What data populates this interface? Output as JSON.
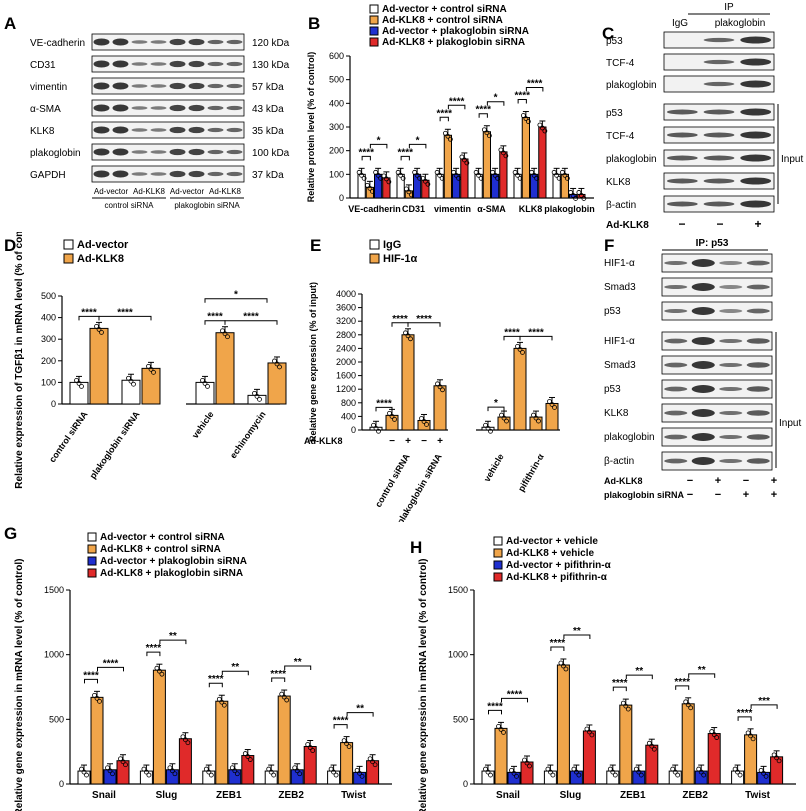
{
  "colors": {
    "white": "#ffffff",
    "orange": "#f0a54a",
    "blue": "#1f2fd0",
    "red": "#e02a2a",
    "band": "#222222"
  },
  "panels": {
    "A": {
      "label": "A",
      "rows": [
        "VE-cadherin",
        "CD31",
        "vimentin",
        "α-SMA",
        "KLK8",
        "plakoglobin",
        "GAPDH"
      ],
      "sizes": [
        "120 kDa",
        "130 kDa",
        "57 kDa",
        "43 kDa",
        "35 kDa",
        "100 kDa",
        "37 kDa"
      ],
      "lanes": [
        "Ad-vector",
        "Ad-KLK8",
        "Ad-vector",
        "Ad-KLK8"
      ],
      "groups": [
        "control siRNA",
        "plakoglobin siRNA"
      ]
    },
    "B": {
      "label": "B",
      "legend": [
        "Ad-vector + control siRNA",
        "Ad-KLK8 + control siRNA",
        "Ad-vector + plakoglobin siRNA",
        "Ad-KLK8 + plakoglobin siRNA"
      ],
      "ylabel": "Relative protein level (% of control)",
      "yticks": [
        "0",
        "100",
        "200",
        "300",
        "400",
        "500",
        "600"
      ],
      "categories": [
        "VE-cadherin",
        "CD31",
        "vimentin",
        "α-SMA",
        "KLK8",
        "plakoglobin"
      ],
      "sig": [
        "****",
        "*",
        "****",
        "*",
        "****",
        "****",
        "****",
        "*",
        "****",
        "****"
      ]
    },
    "C": {
      "label": "C",
      "ip": "IP",
      "ip_cols": [
        "IgG",
        "plakoglobin"
      ],
      "ip_rows": [
        "p53",
        "TCF-4",
        "plakoglobin"
      ],
      "input_rows": [
        "p53",
        "TCF-4",
        "plakoglobin",
        "KLK8",
        "β-actin"
      ],
      "input_label": "Input",
      "treat": "Ad-KLK8",
      "signs": [
        "−",
        "−",
        "+"
      ]
    },
    "D": {
      "label": "D",
      "legend": [
        "Ad-vector",
        "Ad-KLK8"
      ],
      "ylabel": "Relative expression of TGFβ1 in mRNA level (% of control)",
      "yticks": [
        "0",
        "100",
        "200",
        "300",
        "400",
        "500"
      ],
      "xlabels": [
        "control siRNA",
        "plakoglobin siRNA",
        "vehicle",
        "echinomycin"
      ],
      "sig": [
        "****",
        "****",
        "*",
        "****",
        "****"
      ]
    },
    "E": {
      "label": "E",
      "legend": [
        "IgG",
        "HIF-1α"
      ],
      "ylabel": "Relative gene expression (% of input)",
      "yticks": [
        "0",
        "400",
        "800",
        "1200",
        "1600",
        "2000",
        "2400",
        "2800",
        "3200",
        "3600",
        "4000"
      ],
      "treat": "Ad-KLK8",
      "signs": [
        "−",
        "+",
        "−",
        "+"
      ],
      "xlabels": [
        "control siRNA",
        "plakoglobin siRNA",
        "vehicle",
        "pifithrin-α"
      ],
      "sig": [
        "****",
        "****",
        "****",
        "*",
        "****",
        "****"
      ]
    },
    "F": {
      "label": "F",
      "ip": "IP: p53",
      "ip_rows": [
        "HIF1-α",
        "Smad3",
        "p53"
      ],
      "input_rows": [
        "HIF1-α",
        "Smad3",
        "p53",
        "KLK8",
        "plakoglobin",
        "β-actin"
      ],
      "input_label": "Input",
      "treat1": "Ad-KLK8",
      "treat2": "plakoglobin siRNA",
      "signs1": [
        "−",
        "+",
        "−",
        "+"
      ],
      "signs2": [
        "−",
        "−",
        "+",
        "+"
      ]
    },
    "G": {
      "label": "G",
      "legend": [
        "Ad-vector + control siRNA",
        "Ad-KLK8 + control siRNA",
        "Ad-vector + plakoglobin siRNA",
        "Ad-KLK8 + plakoglobin siRNA"
      ],
      "ylabel": "Relative gene expression in mRNA level (% of control)",
      "yticks": [
        "0",
        "500",
        "1000",
        "1500"
      ],
      "categories": [
        "Snail",
        "Slug",
        "ZEB1",
        "ZEB2",
        "Twist"
      ],
      "sig": [
        "****",
        "****",
        "****",
        "**",
        "****",
        "**",
        "****",
        "**",
        "****",
        "**"
      ]
    },
    "H": {
      "label": "H",
      "legend": [
        "Ad-vector + vehicle",
        "Ad-KLK8 + vehicle",
        "Ad-vector + pifithrin-α",
        "Ad-KLK8 + pifithrin-α"
      ],
      "ylabel": "Relative gene expression in mRNA level (% of control)",
      "yticks": [
        "0",
        "500",
        "1000",
        "1500"
      ],
      "categories": [
        "Snail",
        "Slug",
        "ZEB1",
        "ZEB2",
        "Twist"
      ],
      "sig": [
        "****",
        "****",
        "****",
        "**",
        "****",
        "**",
        "****",
        "**",
        "****",
        "***"
      ]
    }
  },
  "chart_data": [
    {
      "id": "B",
      "type": "bar",
      "title": "",
      "ylabel": "Relative protein level (% of control)",
      "ylim": [
        0,
        600
      ],
      "categories": [
        "VE-cadherin",
        "CD31",
        "vimentin",
        "α-SMA",
        "KLK8",
        "plakoglobin"
      ],
      "series": [
        {
          "name": "Ad-vector + control siRNA",
          "values": [
            100,
            100,
            100,
            100,
            100,
            100
          ]
        },
        {
          "name": "Ad-KLK8 + control siRNA",
          "values": [
            45,
            30,
            265,
            280,
            340,
            100
          ]
        },
        {
          "name": "Ad-vector + plakoglobin siRNA",
          "values": [
            100,
            100,
            100,
            100,
            100,
            15
          ]
        },
        {
          "name": "Ad-KLK8 + plakoglobin siRNA",
          "values": [
            85,
            75,
            165,
            195,
            300,
            15
          ]
        }
      ]
    },
    {
      "id": "D",
      "type": "bar",
      "title": "",
      "ylabel": "Relative expression of TGFβ1 in mRNA level (% of control)",
      "ylim": [
        0,
        500
      ],
      "categories": [
        "control siRNA",
        "plakoglobin siRNA",
        "vehicle",
        "echinomycin"
      ],
      "series": [
        {
          "name": "Ad-vector",
          "values": [
            100,
            110,
            100,
            40
          ]
        },
        {
          "name": "Ad-KLK8",
          "values": [
            350,
            165,
            330,
            190
          ]
        }
      ]
    },
    {
      "id": "E",
      "type": "bar",
      "title": "",
      "ylabel": "Relative gene expression (% of input)",
      "ylim": [
        0,
        4000
      ],
      "categories": [
        "control siRNA −",
        "control siRNA +",
        "plakoglobin siRNA −",
        "plakoglobin siRNA +",
        "vehicle −",
        "vehicle +",
        "pifithrin-α −",
        "pifithrin-α +"
      ],
      "series": [
        {
          "name": "IgG",
          "values": [
            80,
            null,
            null,
            null,
            80,
            null,
            null,
            null
          ]
        },
        {
          "name": "HIF-1α",
          "values": [
            null,
            430,
            280,
            1300,
            null,
            2400,
            380,
            780
          ]
        },
        {
          "name": "HIF-1α (Ad-KLK8 +)",
          "values": [
            null,
            2800,
            null,
            null,
            null,
            null,
            null,
            null
          ]
        }
      ]
    },
    {
      "id": "G",
      "type": "bar",
      "title": "",
      "ylabel": "Relative gene expression in mRNA level (% of control)",
      "ylim": [
        0,
        1500
      ],
      "categories": [
        "Snail",
        "Slug",
        "ZEB1",
        "ZEB2",
        "Twist"
      ],
      "series": [
        {
          "name": "Ad-vector + control siRNA",
          "values": [
            100,
            100,
            100,
            100,
            100
          ]
        },
        {
          "name": "Ad-KLK8 + control siRNA",
          "values": [
            670,
            880,
            640,
            680,
            320
          ]
        },
        {
          "name": "Ad-vector + plakoglobin siRNA",
          "values": [
            110,
            110,
            110,
            110,
            90
          ]
        },
        {
          "name": "Ad-KLK8 + plakoglobin siRNA",
          "values": [
            180,
            350,
            220,
            290,
            180
          ]
        }
      ]
    },
    {
      "id": "H",
      "type": "bar",
      "title": "",
      "ylabel": "Relative gene expression in mRNA level (% of control)",
      "ylim": [
        0,
        1500
      ],
      "categories": [
        "Snail",
        "Slug",
        "ZEB1",
        "ZEB2",
        "Twist"
      ],
      "series": [
        {
          "name": "Ad-vector + vehicle",
          "values": [
            100,
            100,
            100,
            100,
            100
          ]
        },
        {
          "name": "Ad-KLK8 + vehicle",
          "values": [
            430,
            920,
            610,
            620,
            380
          ]
        },
        {
          "name": "Ad-vector + pifithrin-α",
          "values": [
            90,
            100,
            100,
            100,
            90
          ]
        },
        {
          "name": "Ad-KLK8 + pifithrin-α",
          "values": [
            170,
            410,
            300,
            390,
            210
          ]
        }
      ]
    }
  ]
}
